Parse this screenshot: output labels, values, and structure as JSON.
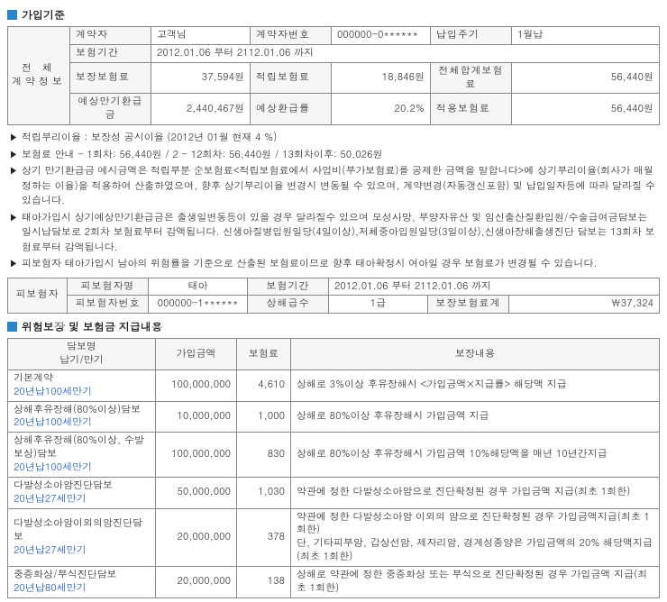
{
  "sections": {
    "s1_title": "가입기준",
    "s2_title": "위험보장 및 보험금 지급내용"
  },
  "contract": {
    "side_label": "전 체\n계약정보",
    "row1": {
      "h1": "계약자",
      "v1": "고객님",
      "h2": "계약자번호",
      "v2": "000000-0******",
      "h3": "납입주기",
      "v3": "1월납"
    },
    "row2": {
      "h1": "보험기간",
      "v1": "2012.01.06 부터 2112.01.06 까지"
    },
    "row3": {
      "h1": "보장보험료",
      "v1": "37,594원",
      "h2": "적립보험료",
      "v2": "18,846원",
      "h3": "전체합계보험료",
      "v3": "56,440원"
    },
    "row4": {
      "h1": "예상만기환급금",
      "v1": "2,440,467원",
      "h2": "예상환급률",
      "v2": "20.2%",
      "h3": "적용보험료",
      "v3": "56,440원"
    }
  },
  "notes": [
    "적립부리이율 : 보장성 공시이율 (2012년 01월 현재 4 %)",
    "보험료 안내 - 1회차:  56,440원 / 2 - 12회차:  56,440원 / 13회차이후:  50,026원",
    "상기 만기환급금 예시금액은 적립부분 순보험료<적립보험료에서 사업비(부가보험료)를 공제한 금액을 말합니다>에 상기부리이율(회사가 매월 정하는 이율)을 적용하여 산출하였으며, 향후 상기부리이율 변경시 변동될 수 있으며, 계약변경(자동갱신포함) 및 납입일자등에 따라 달라질 수 있습니다.",
    "태아가입시 상기예상만기환급금은 출생일변동등이 있을 경우 달라질수 있으며 모성사망, 부양자유산 및 임신출산질환입원/수술급여금담보는 일시납담보로 2회차 보험료부터 감액됩니다. 신생아질병입원일당(4일이상),저체중아입원일당(3일이상),신생아장해출생진단 담보는 13회차 보험료부터 감액됩니다.",
    "피보험자 태아가입시 남아의 위험률을 기준으로 산출된 보험료이므로 향후 태아확정시 여아일 경우 보험료가 변경될 수 있습니다."
  ],
  "insured": {
    "side_label": "피보험자",
    "row1": {
      "h1": "피보험자명",
      "v1": "태아",
      "h2": "보험기간",
      "v2": "2012.01.06 부터 2112.01.06 까지"
    },
    "row2": {
      "h1": "피보험자번호",
      "v1": "000000-1******",
      "h2": "상해급수",
      "v2": "1급",
      "h3": "보장보험료계",
      "v3": "￦37,324"
    }
  },
  "coverage": {
    "headers": {
      "c1": "담보명\n납기/만기",
      "c2": "가입금액",
      "c3": "보험료",
      "c4": "보장내용"
    },
    "rows": [
      {
        "name": "기본계약",
        "term": "20년납100세만기",
        "amount": "100,000,000",
        "premium": "4,610",
        "desc": "상해로 3%이상 후유장해시 <가입금액×지급률> 해당액 지급"
      },
      {
        "name": "상해후유장해(80%이상)담보",
        "term": "20년납100세만기",
        "amount": "10,000,000",
        "premium": "1,000",
        "desc": "상해로 80%이상 후유장해시 가입금액 지급"
      },
      {
        "name": "상해후유장해(80%이상, 수발보상)담보",
        "term": "20년납100세만기",
        "amount": "100,000,000",
        "premium": "830",
        "desc": "상해로 80%이상 후유장해시 가입금액 10%해당액을 매년 10년간지급"
      },
      {
        "name": "다발성소아암진단담보",
        "term": "20년납27세만기",
        "amount": "50,000,000",
        "premium": "1,030",
        "desc": "약관에 정한 다발성소아암으로 진단확정된 경우 가입금액 지급(최초 1회한)"
      },
      {
        "name": "다발성소아암이외의암진단담보",
        "term": "20년납27세만기",
        "amount": "20,000,000",
        "premium": "378",
        "desc": "약관에 정한 다발성소아암 이외의 암으로 진단확정된 경우 가입금액지급(최초 1회한)\n단, 기타피부암, 갑상선암, 제자리암, 경계성종양은 가입금액의 20% 해당액지급(최초 1회한)"
      },
      {
        "name": "중증화상/부식진단담보",
        "term": "20년납80세만기",
        "amount": "20,000,000",
        "premium": "138",
        "desc": "상해로 약관에 정한 중증화상 또는 부식으로 진단확정된 경우 가입금액 지급(최초 1회한)"
      }
    ]
  }
}
